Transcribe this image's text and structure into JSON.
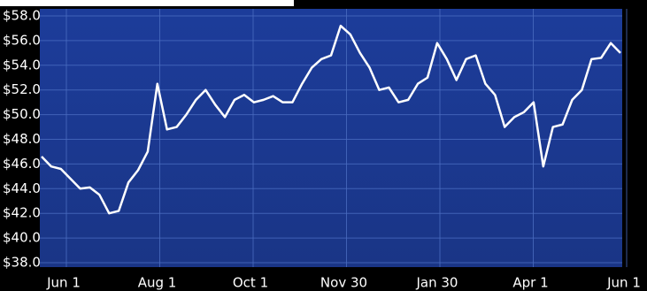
{
  "chart_data": {
    "type": "line",
    "categories": [
      "Jun 1",
      null,
      null,
      null,
      null,
      null,
      null,
      null,
      null,
      null,
      "Aug 1",
      null,
      null,
      null,
      null,
      null,
      null,
      null,
      null,
      null,
      "Oct 1",
      null,
      null,
      null,
      null,
      null,
      null,
      null,
      null,
      null,
      "Nov 30",
      null,
      null,
      null,
      null,
      null,
      null,
      null,
      null,
      null,
      "Jan 30",
      null,
      null,
      null,
      null,
      null,
      null,
      null,
      null,
      null,
      "Apr 1",
      null,
      null,
      null,
      null,
      null,
      null,
      null,
      null,
      null,
      "Jun 1"
    ],
    "series": [
      {
        "color": "#ffffff",
        "values": [
          46.6,
          45.8,
          45.6,
          44.8,
          44.0,
          44.1,
          43.5,
          42.0,
          42.2,
          44.5,
          45.5,
          47.0,
          52.5,
          48.8,
          49.0,
          50.0,
          51.2,
          52.0,
          50.8,
          49.8,
          51.2,
          51.6,
          51.0,
          51.2,
          51.5,
          51.0,
          51.0,
          52.5,
          53.8,
          54.5,
          54.8,
          57.2,
          56.5,
          55.0,
          53.8,
          52.0,
          52.2,
          51.0,
          51.2,
          52.5,
          53.0,
          55.8,
          54.5,
          52.8,
          54.5,
          54.8,
          52.5,
          51.6,
          49.0,
          49.8,
          50.2,
          51.0,
          45.8,
          49.0,
          49.2,
          51.2,
          52.0,
          54.5,
          54.6,
          55.8,
          55.0
        ]
      }
    ],
    "ylim": [
      38,
      58
    ],
    "yticks": [
      {
        "value": 38,
        "label": "$38.0"
      },
      {
        "value": 40,
        "label": "$40.0"
      },
      {
        "value": 42,
        "label": "$42.0"
      },
      {
        "value": 44,
        "label": "$44.0"
      },
      {
        "value": 46,
        "label": "$46.0"
      },
      {
        "value": 48,
        "label": "$48.0"
      },
      {
        "value": 50,
        "label": "$50.0"
      },
      {
        "value": 52,
        "label": "$52.0"
      },
      {
        "value": 54,
        "label": "$54.0"
      },
      {
        "value": 56,
        "label": "$56.0"
      },
      {
        "value": 58,
        "label": "$58.0"
      }
    ],
    "grid": true
  }
}
